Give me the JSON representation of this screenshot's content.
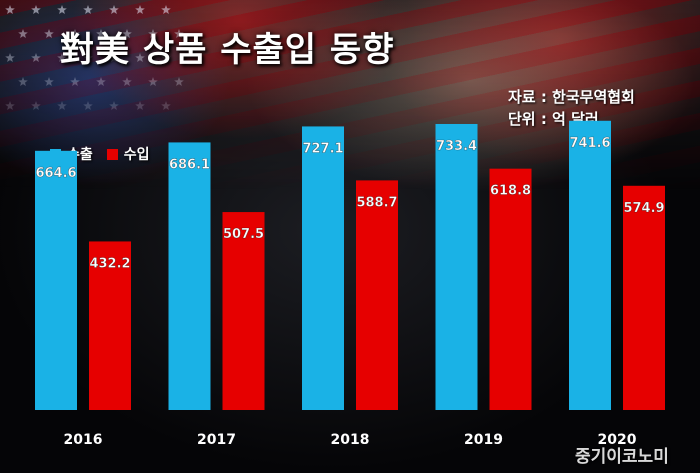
{
  "header": {
    "title": "對美 상품 수출입 동향",
    "source_line": "자료 : 한국무역협회",
    "unit_line": "단위 : 억 달러"
  },
  "colors": {
    "export": "#1ab2e6",
    "import": "#e60000"
  },
  "chart_data": {
    "type": "bar",
    "categories": [
      "2016",
      "2017",
      "2018",
      "2019",
      "2020"
    ],
    "series": [
      {
        "name": "수출",
        "values": [
          664.6,
          686.1,
          727.1,
          733.4,
          741.6
        ]
      },
      {
        "name": "수입",
        "values": [
          432.2,
          507.5,
          588.7,
          618.8,
          574.9
        ]
      }
    ],
    "ylim": [
      0,
      1000
    ],
    "grid": false,
    "legend": "top-left",
    "data_labels": true
  },
  "watermark": "중기이코노미"
}
